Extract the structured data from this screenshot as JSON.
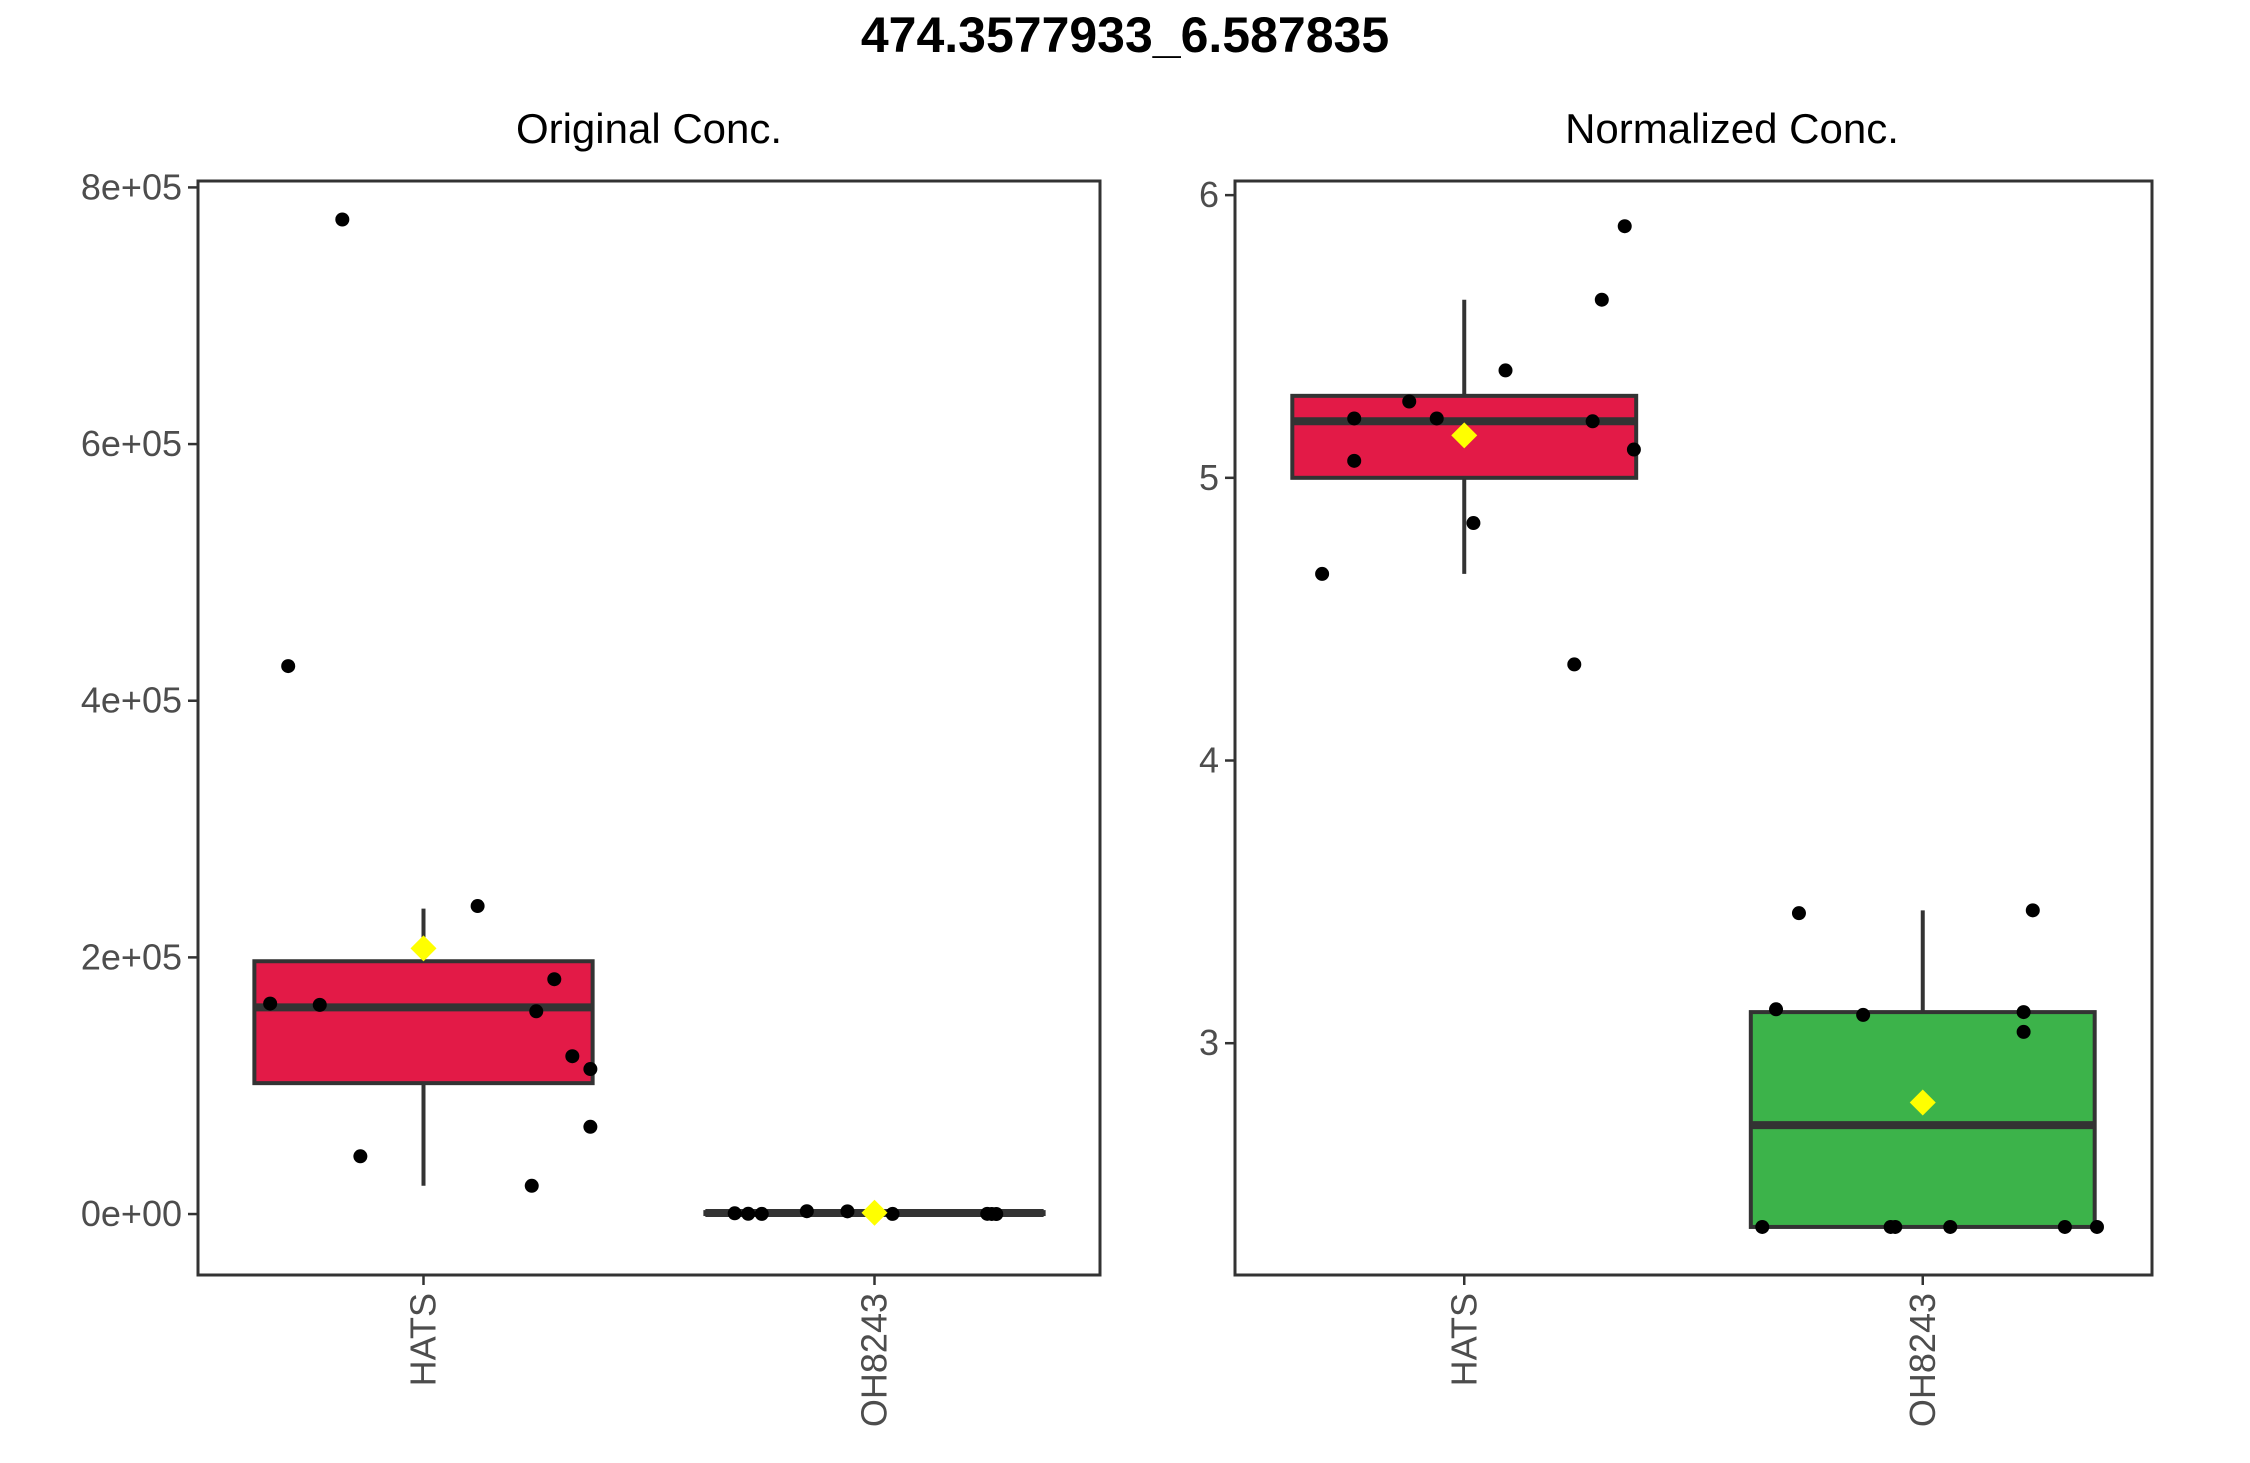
{
  "title": "474.3577933_6.587835",
  "chart_data": [
    {
      "type": "box",
      "title": "Original Conc.",
      "xlabel": "",
      "ylabel": "",
      "ylim": [
        -47500,
        805000
      ],
      "yticks": [
        0,
        200000,
        400000,
        600000,
        800000
      ],
      "ytick_labels": [
        "0e+00",
        "2e+05",
        "4e+05",
        "6e+05",
        "8e+05"
      ],
      "categories": [
        "HATS",
        "OH8243"
      ],
      "groups": [
        {
          "name": "HATS",
          "color": "#E31A47",
          "q1": 102000,
          "median": 161000,
          "q3": 197000,
          "whisker_low": 22000,
          "whisker_high": 238000,
          "mean": 207000,
          "points": [
            {
              "offset": -0.34,
              "y": 164000
            },
            {
              "offset": -0.3,
              "y": 427000
            },
            {
              "offset": -0.23,
              "y": 163000
            },
            {
              "offset": -0.18,
              "y": 775000
            },
            {
              "offset": -0.14,
              "y": 45000
            },
            {
              "offset": 0.12,
              "y": 240000
            },
            {
              "offset": 0.24,
              "y": 22000
            },
            {
              "offset": 0.25,
              "y": 158000
            },
            {
              "offset": 0.29,
              "y": 183000
            },
            {
              "offset": 0.33,
              "y": 123000
            },
            {
              "offset": 0.37,
              "y": 113000
            },
            {
              "offset": 0.37,
              "y": 68000
            }
          ]
        },
        {
          "name": "OH8243",
          "color": "#3CB34A",
          "q1": 0,
          "median": 800,
          "q3": 1500,
          "whisker_low": 0,
          "whisker_high": 2500,
          "mean": 1000,
          "points": [
            {
              "offset": -0.31,
              "y": 600
            },
            {
              "offset": -0.28,
              "y": 200
            },
            {
              "offset": -0.25,
              "y": 100
            },
            {
              "offset": -0.15,
              "y": 2200
            },
            {
              "offset": -0.06,
              "y": 2100
            },
            {
              "offset": 0.0,
              "y": 1200
            },
            {
              "offset": 0.04,
              "y": 100
            },
            {
              "offset": 0.25,
              "y": 150
            },
            {
              "offset": 0.26,
              "y": 50
            },
            {
              "offset": 0.27,
              "y": 0
            }
          ]
        }
      ]
    },
    {
      "type": "box",
      "title": "Normalized Conc.",
      "xlabel": "",
      "ylabel": "",
      "ylim": [
        2.18,
        6.05
      ],
      "yticks": [
        3,
        4,
        5,
        6
      ],
      "ytick_labels": [
        "3",
        "4",
        "5",
        "6"
      ],
      "categories": [
        "HATS",
        "OH8243"
      ],
      "groups": [
        {
          "name": "HATS",
          "color": "#E31A47",
          "q1": 5.0,
          "median": 5.2,
          "q3": 5.29,
          "whisker_low": 4.66,
          "whisker_high": 5.63,
          "mean": 5.15,
          "points": [
            {
              "offset": -0.31,
              "y": 4.66
            },
            {
              "offset": -0.24,
              "y": 5.06
            },
            {
              "offset": -0.24,
              "y": 5.21
            },
            {
              "offset": -0.12,
              "y": 5.27
            },
            {
              "offset": -0.06,
              "y": 5.21
            },
            {
              "offset": 0.02,
              "y": 4.84
            },
            {
              "offset": 0.09,
              "y": 5.38
            },
            {
              "offset": 0.24,
              "y": 4.34
            },
            {
              "offset": 0.28,
              "y": 5.2
            },
            {
              "offset": 0.3,
              "y": 5.63
            },
            {
              "offset": 0.35,
              "y": 5.89
            },
            {
              "offset": 0.37,
              "y": 5.1
            }
          ]
        },
        {
          "name": "OH8243",
          "color": "#3CB34A",
          "q1": 2.35,
          "median": 2.71,
          "q3": 3.11,
          "whisker_low": 2.35,
          "whisker_high": 3.47,
          "mean": 2.79,
          "points": [
            {
              "offset": -0.35,
              "y": 2.35
            },
            {
              "offset": -0.32,
              "y": 3.12
            },
            {
              "offset": -0.27,
              "y": 3.46
            },
            {
              "offset": -0.13,
              "y": 3.1
            },
            {
              "offset": -0.07,
              "y": 2.35
            },
            {
              "offset": -0.06,
              "y": 2.35
            },
            {
              "offset": 0.06,
              "y": 2.35
            },
            {
              "offset": 0.22,
              "y": 3.11
            },
            {
              "offset": 0.22,
              "y": 3.04
            },
            {
              "offset": 0.24,
              "y": 3.47
            },
            {
              "offset": 0.31,
              "y": 2.35
            },
            {
              "offset": 0.38,
              "y": 2.35
            }
          ]
        }
      ]
    }
  ]
}
